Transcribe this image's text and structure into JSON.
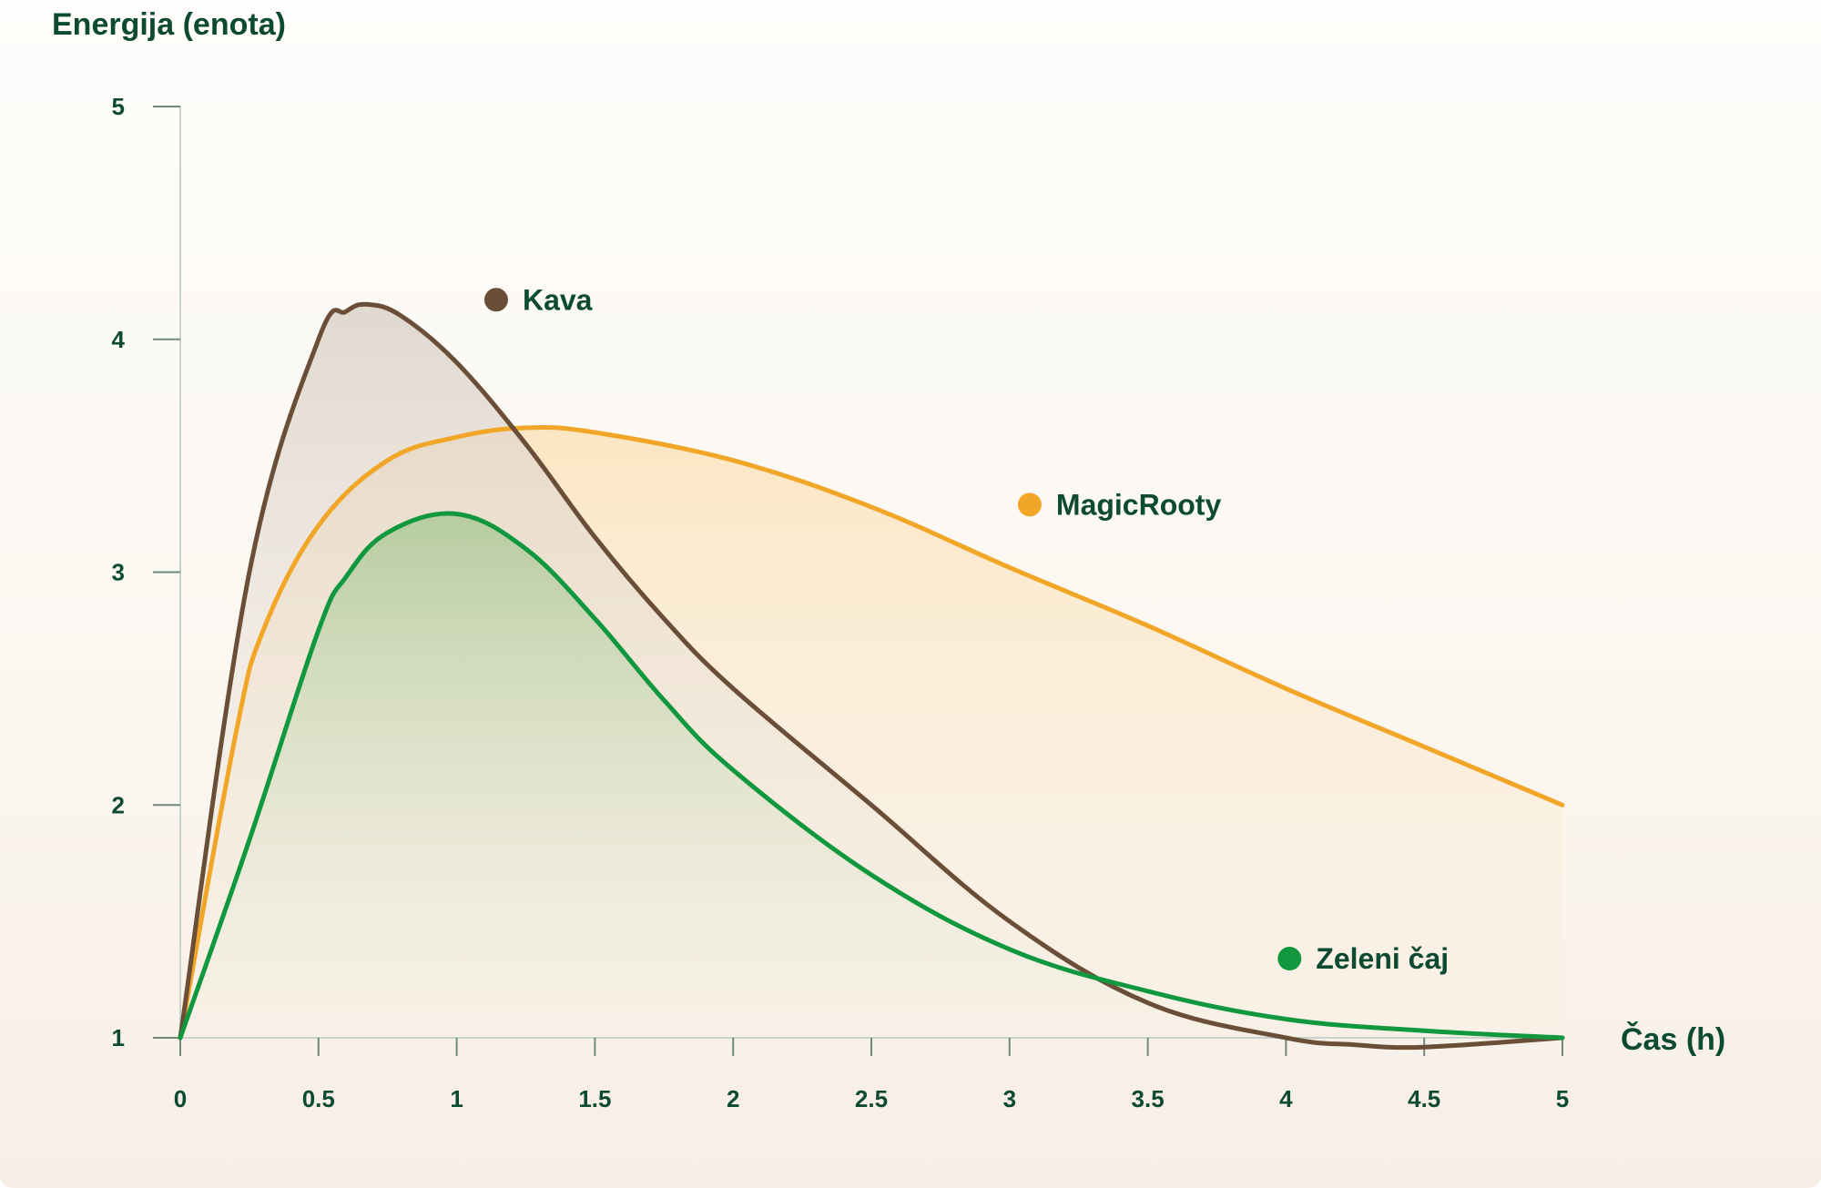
{
  "chart_data": {
    "type": "line",
    "title": "",
    "ylabel": "Energija (enota)",
    "xlabel": "Čas (h)",
    "xlim": [
      0,
      5
    ],
    "ylim": [
      1,
      5
    ],
    "x_ticks": [
      "0",
      "0.5",
      "1",
      "1.5",
      "2",
      "2.5",
      "3",
      "3.5",
      "4",
      "4.5",
      "5"
    ],
    "y_ticks": [
      "1",
      "2",
      "3",
      "4",
      "5"
    ],
    "grid": false,
    "filled_areas": true,
    "series": [
      {
        "name": "Kava",
        "color": "#6b4e37",
        "x": [
          0,
          0.25,
          0.5,
          0.6,
          0.68,
          0.8,
          1.0,
          1.25,
          1.5,
          1.75,
          2.0,
          2.5,
          3.0,
          3.5,
          4.0,
          4.25,
          4.5,
          5.0
        ],
        "y": [
          1.0,
          3.0,
          4.0,
          4.12,
          4.15,
          4.1,
          3.9,
          3.55,
          3.15,
          2.8,
          2.5,
          2.0,
          1.5,
          1.15,
          1.0,
          0.97,
          0.96,
          1.0
        ]
      },
      {
        "name": "MagicRooty",
        "color": "#f2a627",
        "x": [
          0,
          0.2,
          0.3,
          0.5,
          0.75,
          1.0,
          1.25,
          1.5,
          2.0,
          2.5,
          3.0,
          3.5,
          4.0,
          4.5,
          5.0
        ],
        "y": [
          1.0,
          2.3,
          2.75,
          3.2,
          3.48,
          3.58,
          3.62,
          3.6,
          3.48,
          3.28,
          3.02,
          2.77,
          2.5,
          2.25,
          2.0
        ]
      },
      {
        "name": "Zeleni čaj",
        "color": "#11983f",
        "x": [
          0,
          0.25,
          0.5,
          0.6,
          0.75,
          1.0,
          1.25,
          1.5,
          1.75,
          2.0,
          2.5,
          3.0,
          3.5,
          4.0,
          4.5,
          5.0
        ],
        "y": [
          1.0,
          1.85,
          2.75,
          2.98,
          3.17,
          3.25,
          3.1,
          2.8,
          2.45,
          2.15,
          1.7,
          1.38,
          1.2,
          1.08,
          1.03,
          1.0
        ]
      }
    ],
    "legend": [
      {
        "name": "Kava",
        "color": "#6b4e37",
        "x": 1.1,
        "y": 4.17
      },
      {
        "name": "MagicRooty",
        "color": "#f2a627",
        "x": 3.03,
        "y": 3.29
      },
      {
        "name": "Zeleni čaj",
        "color": "#11983f",
        "x": 3.97,
        "y": 1.34
      }
    ]
  }
}
